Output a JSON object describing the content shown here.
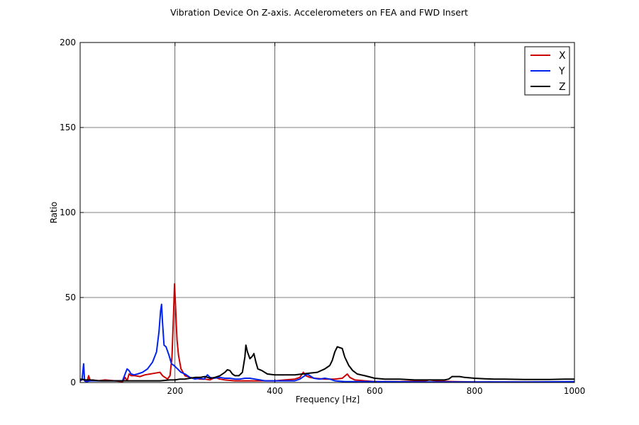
{
  "chart_data": {
    "type": "line",
    "title": "Vibration Device On Z-axis. Accelerometers on FEA and FWD Insert",
    "xlabel": "Frequency [Hz]",
    "ylabel": "Ratio",
    "xlim": [
      10,
      1000
    ],
    "ylim": [
      0,
      200
    ],
    "xticks": [
      200,
      400,
      600,
      800,
      1000
    ],
    "yticks": [
      0,
      50,
      100,
      150,
      200
    ],
    "grid": true,
    "legend_position": "top-right",
    "series": [
      {
        "name": "X",
        "color": "#cc0000",
        "points": [
          [
            10,
            1
          ],
          [
            16,
            2
          ],
          [
            20,
            1
          ],
          [
            24,
            0.5
          ],
          [
            27,
            4
          ],
          [
            30,
            1
          ],
          [
            35,
            1.5
          ],
          [
            45,
            1
          ],
          [
            60,
            1.5
          ],
          [
            80,
            1
          ],
          [
            95,
            0.5
          ],
          [
            100,
            3
          ],
          [
            104,
            1
          ],
          [
            108,
            5
          ],
          [
            112,
            4
          ],
          [
            120,
            4
          ],
          [
            130,
            3.5
          ],
          [
            140,
            4.5
          ],
          [
            150,
            5
          ],
          [
            160,
            5.5
          ],
          [
            170,
            6
          ],
          [
            175,
            4
          ],
          [
            180,
            3
          ],
          [
            185,
            2
          ],
          [
            190,
            4
          ],
          [
            194,
            15
          ],
          [
            197,
            40
          ],
          [
            199,
            58
          ],
          [
            201,
            45
          ],
          [
            204,
            25
          ],
          [
            207,
            16
          ],
          [
            212,
            8
          ],
          [
            220,
            4
          ],
          [
            230,
            3
          ],
          [
            240,
            2.5
          ],
          [
            250,
            2
          ],
          [
            260,
            2
          ],
          [
            270,
            1.5
          ],
          [
            280,
            3
          ],
          [
            290,
            2
          ],
          [
            300,
            1.5
          ],
          [
            320,
            1
          ],
          [
            340,
            1
          ],
          [
            360,
            1
          ],
          [
            380,
            1
          ],
          [
            400,
            1
          ],
          [
            420,
            1.5
          ],
          [
            440,
            2
          ],
          [
            450,
            3
          ],
          [
            457,
            6
          ],
          [
            462,
            4
          ],
          [
            470,
            3
          ],
          [
            480,
            2.5
          ],
          [
            500,
            2
          ],
          [
            520,
            2
          ],
          [
            535,
            2.5
          ],
          [
            545,
            5
          ],
          [
            550,
            3
          ],
          [
            560,
            1.5
          ],
          [
            580,
            1
          ],
          [
            600,
            0.5
          ],
          [
            650,
            0.5
          ],
          [
            700,
            1
          ],
          [
            710,
            1.5
          ],
          [
            730,
            0.8
          ],
          [
            760,
            0.5
          ],
          [
            800,
            0.3
          ],
          [
            900,
            0.3
          ],
          [
            1000,
            0.3
          ]
        ]
      },
      {
        "name": "Y",
        "color": "#0022ee",
        "points": [
          [
            10,
            1
          ],
          [
            14,
            2
          ],
          [
            17,
            11
          ],
          [
            19,
            1
          ],
          [
            22,
            0.5
          ],
          [
            30,
            1
          ],
          [
            40,
            1
          ],
          [
            60,
            1
          ],
          [
            80,
            1
          ],
          [
            95,
            1
          ],
          [
            100,
            5
          ],
          [
            104,
            8
          ],
          [
            108,
            7
          ],
          [
            112,
            5
          ],
          [
            118,
            4.5
          ],
          [
            125,
            5
          ],
          [
            135,
            6
          ],
          [
            145,
            8
          ],
          [
            155,
            12
          ],
          [
            163,
            18
          ],
          [
            168,
            30
          ],
          [
            171,
            42
          ],
          [
            173,
            46
          ],
          [
            175,
            35
          ],
          [
            178,
            22
          ],
          [
            182,
            21
          ],
          [
            188,
            16
          ],
          [
            193,
            11
          ],
          [
            198,
            10
          ],
          [
            205,
            8
          ],
          [
            212,
            6
          ],
          [
            220,
            5
          ],
          [
            230,
            3
          ],
          [
            240,
            2
          ],
          [
            250,
            2.5
          ],
          [
            258,
            2
          ],
          [
            265,
            4.5
          ],
          [
            270,
            3
          ],
          [
            278,
            2.5
          ],
          [
            290,
            3
          ],
          [
            300,
            2.5
          ],
          [
            310,
            2.5
          ],
          [
            320,
            2
          ],
          [
            330,
            2
          ],
          [
            340,
            2.5
          ],
          [
            350,
            2.5
          ],
          [
            360,
            2
          ],
          [
            370,
            1.5
          ],
          [
            380,
            1
          ],
          [
            400,
            1
          ],
          [
            420,
            1
          ],
          [
            440,
            1
          ],
          [
            450,
            2
          ],
          [
            460,
            4
          ],
          [
            465,
            5
          ],
          [
            470,
            4
          ],
          [
            478,
            2.5
          ],
          [
            490,
            2
          ],
          [
            500,
            2.5
          ],
          [
            510,
            2
          ],
          [
            520,
            1
          ],
          [
            540,
            0.5
          ],
          [
            600,
            0.5
          ],
          [
            700,
            0.3
          ],
          [
            800,
            0.3
          ],
          [
            900,
            0.3
          ],
          [
            1000,
            0.5
          ]
        ]
      },
      {
        "name": "Z",
        "color": "#000000",
        "points": [
          [
            10,
            2
          ],
          [
            20,
            1.5
          ],
          [
            30,
            1.5
          ],
          [
            50,
            1
          ],
          [
            70,
            1
          ],
          [
            90,
            1
          ],
          [
            110,
            1
          ],
          [
            130,
            1
          ],
          [
            150,
            1
          ],
          [
            170,
            1
          ],
          [
            190,
            1.5
          ],
          [
            200,
            1.5
          ],
          [
            210,
            2
          ],
          [
            220,
            2
          ],
          [
            230,
            2.5
          ],
          [
            240,
            3
          ],
          [
            250,
            3
          ],
          [
            260,
            3.5
          ],
          [
            270,
            2.5
          ],
          [
            280,
            3
          ],
          [
            290,
            4
          ],
          [
            300,
            6
          ],
          [
            305,
            7.5
          ],
          [
            310,
            7
          ],
          [
            315,
            5
          ],
          [
            320,
            4
          ],
          [
            328,
            4
          ],
          [
            335,
            6
          ],
          [
            340,
            15
          ],
          [
            342,
            22
          ],
          [
            345,
            18
          ],
          [
            350,
            14
          ],
          [
            355,
            15.5
          ],
          [
            358,
            17
          ],
          [
            362,
            12
          ],
          [
            366,
            8
          ],
          [
            374,
            7
          ],
          [
            385,
            5
          ],
          [
            400,
            4.5
          ],
          [
            420,
            4.5
          ],
          [
            440,
            4.5
          ],
          [
            455,
            5
          ],
          [
            470,
            5.5
          ],
          [
            485,
            6
          ],
          [
            500,
            8
          ],
          [
            510,
            10
          ],
          [
            515,
            13
          ],
          [
            520,
            18
          ],
          [
            525,
            21
          ],
          [
            530,
            20.5
          ],
          [
            535,
            20
          ],
          [
            540,
            15
          ],
          [
            548,
            10
          ],
          [
            556,
            7
          ],
          [
            565,
            5
          ],
          [
            580,
            4
          ],
          [
            600,
            2.5
          ],
          [
            620,
            2
          ],
          [
            650,
            2
          ],
          [
            680,
            1.5
          ],
          [
            700,
            1.5
          ],
          [
            720,
            1.5
          ],
          [
            740,
            1.5
          ],
          [
            748,
            2
          ],
          [
            755,
            3.5
          ],
          [
            770,
            3.5
          ],
          [
            780,
            3
          ],
          [
            800,
            2.5
          ],
          [
            820,
            2.2
          ],
          [
            840,
            2
          ],
          [
            860,
            2
          ],
          [
            900,
            1.8
          ],
          [
            950,
            1.8
          ],
          [
            980,
            2
          ],
          [
            1000,
            2
          ]
        ]
      }
    ]
  }
}
